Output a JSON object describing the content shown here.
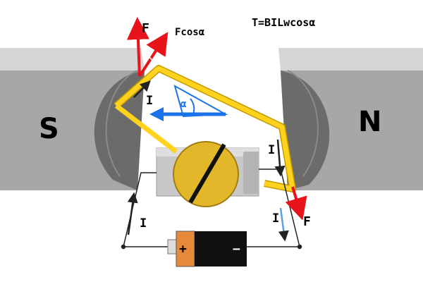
{
  "poles": {
    "south": "S",
    "north": "N"
  },
  "labels": {
    "force_top": "F",
    "force_cos": "Fcosα",
    "torque_formula": "T=BILwcosα",
    "force_bottom": "F",
    "current_loop_left": "I",
    "current_loop_right": "I",
    "current_circuit_left": "I",
    "current_circuit_right": "I",
    "angle_alpha_top": "α",
    "angle_alpha_mid": "α"
  },
  "battery": {
    "positive": "+",
    "negative": "−"
  },
  "colors": {
    "magnet_light": "#cfcfcf",
    "magnet_mid": "#a9a9a9",
    "magnet_dark": "#6e6e6e",
    "coil": "#ffd21e",
    "coil_edge": "#c59a00",
    "commutator": "#e2b82a",
    "force_arrow": "#e8141c",
    "field_arrow": "#1a73e8",
    "battery_positive": "#e58a3a",
    "battery_negative": "#111111"
  }
}
